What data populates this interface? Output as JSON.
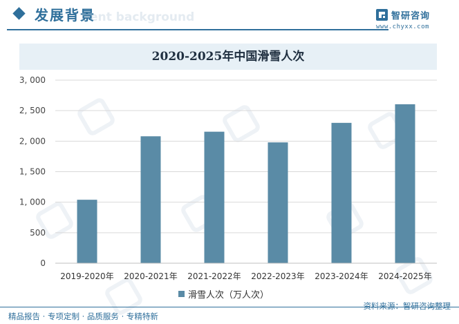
{
  "header": {
    "title": "发展背景",
    "watermark_text": "ent background",
    "brand_name": "智研咨询",
    "brand_url": "www.chyxx.com"
  },
  "chart_data": {
    "type": "bar",
    "title": "2020-2025年中国滑雪人次",
    "categories": [
      "2019-2020年",
      "2020-2021年",
      "2021-2022年",
      "2022-2023年",
      "2023-2024年",
      "2024-2025年"
    ],
    "series": [
      {
        "name": "滑雪人次（万人次）",
        "values": [
          1040,
          2080,
          2155,
          1980,
          2300,
          2605
        ]
      }
    ],
    "ylim": [
      0,
      3000
    ],
    "yticks": [
      0,
      500,
      1000,
      1500,
      2000,
      2500,
      3000
    ],
    "ytick_labels": [
      "0",
      "500",
      "1, 000",
      "1, 500",
      "2, 000",
      "2, 500",
      "3, 000"
    ],
    "grid": true,
    "legend": "bottom-center",
    "bar_color": "#5a8ba6"
  },
  "footer": {
    "left": "精品报告 · 专项定制 · 品质服务 · 专精特新",
    "right": "资料来源：智研咨询整理"
  }
}
